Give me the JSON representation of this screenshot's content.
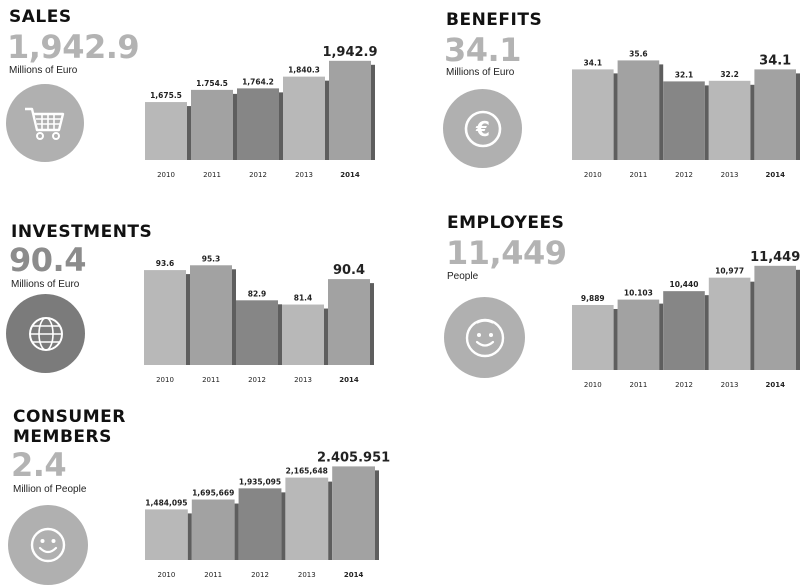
{
  "panels": {
    "sales": {
      "title": "SALES",
      "value": "1,942.9",
      "unit": "Millions of Euro",
      "icon": "shopping-cart-icon"
    },
    "benefits": {
      "title": "BENEFITS",
      "value": "34.1",
      "unit": "Millions of Euro",
      "icon": "euro-coin-icon"
    },
    "investments": {
      "title": "INVESTMENTS",
      "value": "90.4",
      "unit": "Millions of Euro",
      "icon": "globe-icon"
    },
    "employees": {
      "title": "EMPLOYEES",
      "value": "11,449",
      "unit": "People",
      "icon": "smiley-face-icon"
    },
    "consumers": {
      "title_line1": "CONSUMER",
      "title_line2": "MEMBERS",
      "value": "2.4",
      "unit": "Million of People",
      "icon": "smiley-icon"
    }
  },
  "colors": {
    "bar_light": "#b8b8b8",
    "bar_mid": "#a2a2a2",
    "bar_dark": "#868686",
    "bar_shadow": "#5e5e5e",
    "big_light": "#b3b3b3",
    "big_dark": "#8c8c8c"
  },
  "chart_data": [
    {
      "type": "bar",
      "id": "sales",
      "categories": [
        "2010",
        "2011",
        "2012",
        "2013",
        "2014"
      ],
      "values": [
        1675.5,
        1754.5,
        1764.2,
        1840.3,
        1942.9
      ],
      "labels": [
        "1,675.5",
        "1.754.5",
        "1,764.2",
        "1,840.3",
        "1,942.9"
      ],
      "ylim": [
        1300,
        2000
      ]
    },
    {
      "type": "bar",
      "id": "benefits",
      "categories": [
        "2010",
        "2011",
        "2012",
        "2013",
        "2014"
      ],
      "values": [
        34.1,
        35.6,
        32.1,
        32.2,
        34.1
      ],
      "labels": [
        "34.1",
        "35.6",
        "32.1",
        "32.2",
        "34.1"
      ],
      "ylim": [
        19,
        37
      ]
    },
    {
      "type": "bar",
      "id": "investments",
      "categories": [
        "2010",
        "2011",
        "2012",
        "2013",
        "2014"
      ],
      "values": [
        93.6,
        95.3,
        82.9,
        81.4,
        90.4
      ],
      "labels": [
        "93.6",
        "95.3",
        "82.9",
        "81.4",
        "90.4"
      ],
      "ylim": [
        60,
        100
      ]
    },
    {
      "type": "bar",
      "id": "employees",
      "categories": [
        "2010",
        "2011",
        "2012",
        "2013",
        "2014"
      ],
      "values": [
        9889,
        10103,
        10440,
        10977,
        11449
      ],
      "labels": [
        "9,889",
        "10.103",
        "10,440",
        "10,977",
        "11,449"
      ],
      "ylim": [
        7300,
        11800
      ]
    },
    {
      "type": "bar",
      "id": "consumers",
      "categories": [
        "2010",
        "2011",
        "2012",
        "2013",
        "2014"
      ],
      "values": [
        1484095,
        1695669,
        1935095,
        2165648,
        2405951
      ],
      "labels": [
        "1,484,095",
        "1,695,669",
        "1,935,095",
        "2,165,648",
        "2.405.951"
      ],
      "ylim": [
        400000,
        2500000
      ]
    }
  ]
}
